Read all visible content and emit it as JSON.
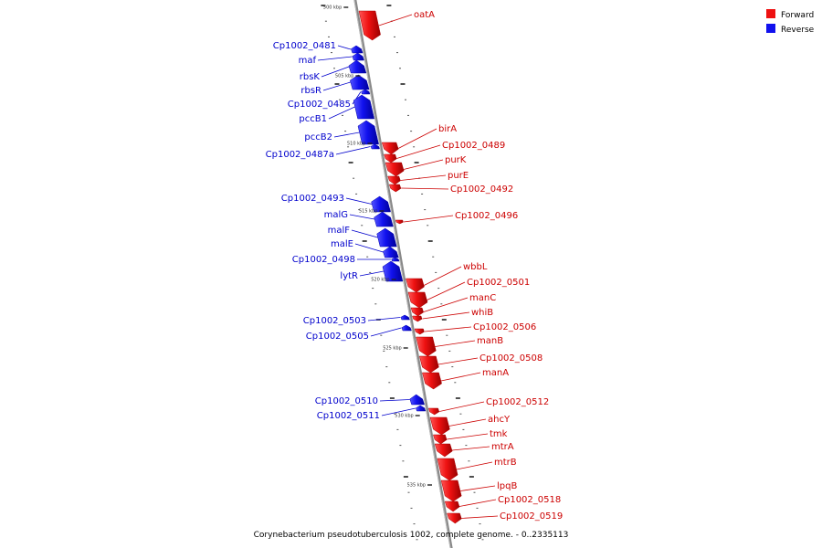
{
  "legend": {
    "forward": {
      "label": "Forward",
      "color": "#ee1111"
    },
    "reverse": {
      "label": "Reverse",
      "color": "#1111ee"
    }
  },
  "caption": "Corynebacterium pseudotuberculosis 1002, complete genome. - 0..2335113",
  "kbp_markers": [
    "500 kbp",
    "505 kbp",
    "510 kbp",
    "515 kbp",
    "520 kbp",
    "525 kbp",
    "530 kbp",
    "535 kbp"
  ],
  "genes_forward": [
    "oatA",
    "birA",
    "Cp1002_0489",
    "purK",
    "purE",
    "Cp1002_0492",
    "Cp1002_0496",
    "wbbL",
    "Cp1002_0501",
    "manC",
    "whiB",
    "Cp1002_0506",
    "manB",
    "Cp1002_0508",
    "manA",
    "Cp1002_0512",
    "ahcY",
    "tmk",
    "mtrA",
    "mtrB",
    "lpqB",
    "Cp1002_0518",
    "Cp1002_0519"
  ],
  "genes_reverse": [
    "Cp1002_0481",
    "maf",
    "rbsK",
    "rbsR",
    "Cp1002_0485",
    "pccB1",
    "pccB2",
    "Cp1002_0487a",
    "Cp1002_0493",
    "malG",
    "malF",
    "malE",
    "Cp1002_0498",
    "lytR",
    "Cp1002_0503",
    "Cp1002_0505",
    "Cp1002_0510",
    "Cp1002_0511"
  ]
}
